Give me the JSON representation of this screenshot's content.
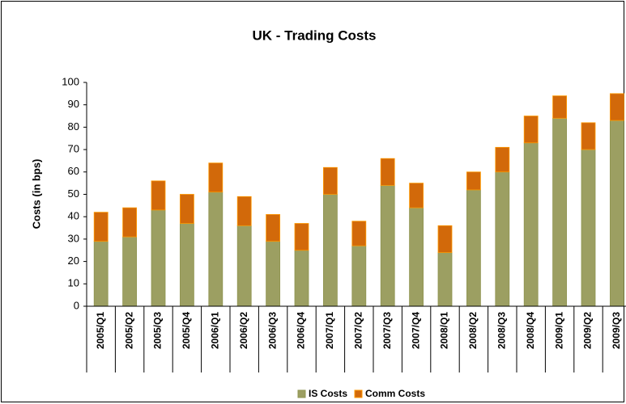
{
  "chart_data": {
    "type": "stacked_bar",
    "title": "UK - Trading Costs",
    "y_label": "Costs (in bps)",
    "categories": [
      "2005/Q1",
      "2005/Q2",
      "2005/Q3",
      "2005/Q4",
      "2006/Q1",
      "2006/Q2",
      "2006/Q3",
      "2006/Q4",
      "2007/Q1",
      "2007/Q2",
      "2007/Q3",
      "2007/Q4",
      "2008/Q1",
      "2008/Q2",
      "2008/Q3",
      "2008/Q4",
      "2009/Q1",
      "2009/Q2",
      "2009/Q3"
    ],
    "series": [
      {
        "name": "IS Costs",
        "color": "#9c9f62",
        "values": [
          29,
          31,
          43,
          37,
          51,
          36,
          29,
          25,
          50,
          27,
          54,
          44,
          24,
          52,
          60,
          73,
          84,
          70,
          83
        ]
      },
      {
        "name": "Comm Costs",
        "color": "#d2690a",
        "values": [
          13,
          13,
          13,
          13,
          13,
          13,
          12,
          12,
          12,
          11,
          12,
          11,
          12,
          8,
          11,
          12,
          10,
          12,
          12
        ]
      }
    ],
    "ylim": [
      0,
      100
    ],
    "yticks": [
      0,
      10,
      20,
      30,
      40,
      50,
      60,
      70,
      80,
      90,
      100
    ],
    "grid": false,
    "legend": "bottom"
  }
}
